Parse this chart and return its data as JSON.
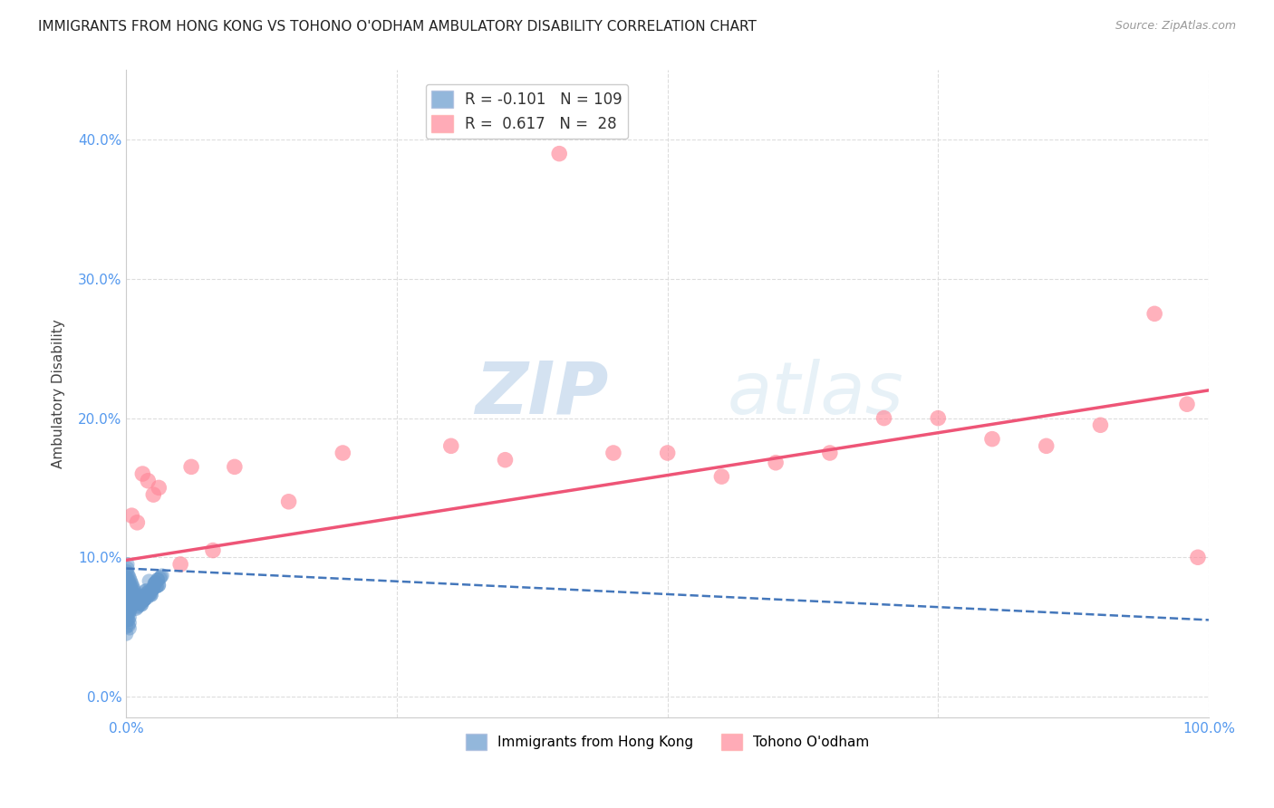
{
  "title": "IMMIGRANTS FROM HONG KONG VS TOHONO O'ODHAM AMBULATORY DISABILITY CORRELATION CHART",
  "source": "Source: ZipAtlas.com",
  "ylabel": "Ambulatory Disability",
  "xlim": [
    0.0,
    1.0
  ],
  "ylim": [
    -0.015,
    0.45
  ],
  "blue_R": -0.101,
  "blue_N": 109,
  "pink_R": 0.617,
  "pink_N": 28,
  "blue_color": "#6699CC",
  "pink_color": "#FF8899",
  "blue_line_color": "#4477BB",
  "pink_line_color": "#EE5577",
  "watermark_zip": "ZIP",
  "watermark_atlas": "atlas",
  "legend_label_blue": "Immigrants from Hong Kong",
  "legend_label_pink": "Tohono O'odham",
  "blue_points_x": [
    0.0,
    0.0,
    0.0,
    0.0,
    0.0,
    0.0,
    0.0,
    0.0,
    0.0,
    0.0,
    0.001,
    0.001,
    0.001,
    0.001,
    0.001,
    0.001,
    0.001,
    0.001,
    0.001,
    0.001,
    0.002,
    0.002,
    0.002,
    0.002,
    0.002,
    0.002,
    0.002,
    0.002,
    0.002,
    0.002,
    0.003,
    0.003,
    0.003,
    0.003,
    0.003,
    0.003,
    0.003,
    0.003,
    0.003,
    0.003,
    0.004,
    0.004,
    0.004,
    0.004,
    0.004,
    0.004,
    0.005,
    0.005,
    0.005,
    0.005,
    0.005,
    0.006,
    0.006,
    0.006,
    0.007,
    0.007,
    0.007,
    0.008,
    0.008,
    0.008,
    0.009,
    0.009,
    0.01,
    0.01,
    0.011,
    0.012,
    0.013,
    0.014,
    0.015,
    0.016,
    0.017,
    0.018,
    0.019,
    0.02,
    0.021,
    0.022,
    0.023,
    0.024,
    0.025,
    0.026,
    0.027,
    0.028,
    0.029,
    0.03,
    0.02,
    0.025,
    0.015,
    0.03,
    0.018,
    0.022,
    0.017,
    0.019,
    0.023,
    0.012,
    0.028,
    0.016,
    0.024,
    0.013,
    0.027,
    0.014,
    0.021,
    0.026,
    0.011,
    0.029,
    0.01,
    0.031,
    0.032,
    0.033,
    0.009
  ],
  "blue_points_y": [
    0.09,
    0.085,
    0.08,
    0.075,
    0.07,
    0.065,
    0.06,
    0.055,
    0.05,
    0.045,
    0.095,
    0.092,
    0.088,
    0.082,
    0.078,
    0.074,
    0.068,
    0.064,
    0.06,
    0.055,
    0.087,
    0.083,
    0.079,
    0.075,
    0.071,
    0.067,
    0.063,
    0.059,
    0.055,
    0.051,
    0.085,
    0.081,
    0.077,
    0.073,
    0.069,
    0.065,
    0.061,
    0.057,
    0.053,
    0.049,
    0.083,
    0.079,
    0.075,
    0.071,
    0.067,
    0.063,
    0.081,
    0.077,
    0.073,
    0.069,
    0.065,
    0.079,
    0.075,
    0.071,
    0.077,
    0.073,
    0.069,
    0.075,
    0.071,
    0.067,
    0.073,
    0.069,
    0.071,
    0.067,
    0.069,
    0.068,
    0.067,
    0.066,
    0.072,
    0.069,
    0.07,
    0.076,
    0.074,
    0.075,
    0.073,
    0.074,
    0.073,
    0.077,
    0.078,
    0.081,
    0.082,
    0.079,
    0.084,
    0.08,
    0.075,
    0.078,
    0.072,
    0.08,
    0.076,
    0.074,
    0.07,
    0.071,
    0.073,
    0.068,
    0.079,
    0.069,
    0.077,
    0.067,
    0.082,
    0.066,
    0.083,
    0.081,
    0.065,
    0.084,
    0.064,
    0.085,
    0.086,
    0.087,
    0.063
  ],
  "pink_points_x": [
    0.005,
    0.01,
    0.015,
    0.02,
    0.025,
    0.03,
    0.05,
    0.06,
    0.08,
    0.1,
    0.2,
    0.35,
    0.4,
    0.45,
    0.5,
    0.55,
    0.6,
    0.65,
    0.7,
    0.75,
    0.8,
    0.85,
    0.9,
    0.95,
    0.98,
    0.99,
    0.3,
    0.15
  ],
  "pink_points_y": [
    0.13,
    0.125,
    0.16,
    0.155,
    0.145,
    0.15,
    0.095,
    0.165,
    0.105,
    0.165,
    0.175,
    0.17,
    0.39,
    0.175,
    0.175,
    0.158,
    0.168,
    0.175,
    0.2,
    0.2,
    0.185,
    0.18,
    0.195,
    0.275,
    0.21,
    0.1,
    0.18,
    0.14
  ],
  "blue_trend_y_start": 0.092,
  "blue_trend_y_end": 0.055,
  "pink_trend_y_start": 0.098,
  "pink_trend_y_end": 0.22,
  "yticks": [
    0.0,
    0.1,
    0.2,
    0.3,
    0.4
  ],
  "ytick_labels": [
    "0.0%",
    "10.0%",
    "20.0%",
    "30.0%",
    "40.0%"
  ],
  "xticks": [
    0.0,
    0.25,
    0.5,
    0.75,
    1.0
  ],
  "xtick_labels": [
    "0.0%",
    "",
    "",
    "",
    "100.0%"
  ],
  "background_color": "#FFFFFF",
  "grid_color": "#DDDDDD",
  "tick_color": "#5599EE"
}
